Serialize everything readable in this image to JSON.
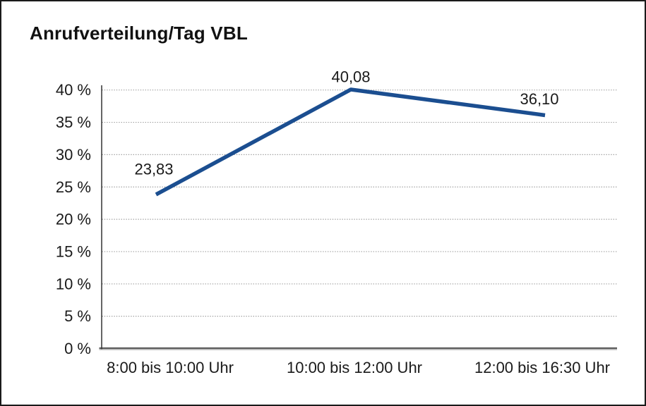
{
  "chart_data": {
    "type": "line",
    "title": "Anrufverteilung/Tag VBL",
    "categories": [
      "8:00 bis 10:00 Uhr",
      "10:00 bis 12:00 Uhr",
      "12:00 bis 16:30 Uhr"
    ],
    "values": [
      23.83,
      40.08,
      36.1
    ],
    "data_labels": [
      "23,83",
      "40,08",
      "36,10"
    ],
    "ytick_labels": [
      "0 %",
      "5 %",
      "10 %",
      "15 %",
      "20 %",
      "25 %",
      "30 %",
      "35 %",
      "40 %"
    ],
    "ylim": [
      0,
      40
    ],
    "ytick_step": 5,
    "xlabel": "",
    "ylabel": "",
    "grid": "horizontal-dotted",
    "legend": "none",
    "line_color": "#1b4e90",
    "axis_color": "#3d3d3d",
    "axis_shadow_color": "#9c9c9c",
    "grid_color": "#8f8f8f",
    "text_color": "#1a1a1a",
    "background": "#ffffff"
  }
}
